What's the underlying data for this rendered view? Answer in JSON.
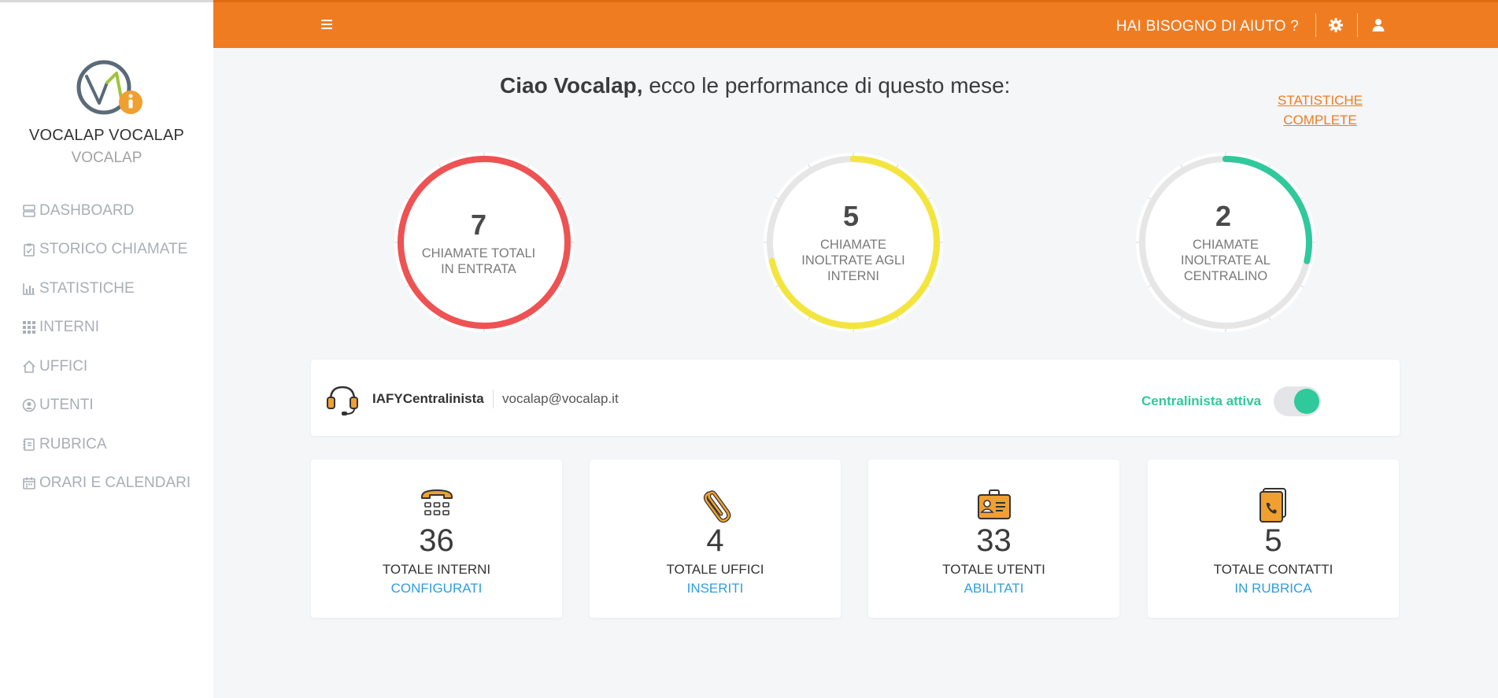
{
  "sidebar": {
    "user_name": "VOCALAP VOCALAP",
    "company": "VOCALAP",
    "items": [
      {
        "label": "DASHBOARD",
        "icon": "dashboard-icon"
      },
      {
        "label": "STORICO CHIAMATE",
        "icon": "clipboard-icon"
      },
      {
        "label": "STATISTICHE",
        "icon": "bar-chart-icon"
      },
      {
        "label": "INTERNI",
        "icon": "grid-icon"
      },
      {
        "label": "UFFICI",
        "icon": "home-icon"
      },
      {
        "label": "UTENTI",
        "icon": "user-circle-icon"
      },
      {
        "label": "RUBRICA",
        "icon": "address-book-icon"
      },
      {
        "label": "ORARI E CALENDARI",
        "icon": "calendar-icon"
      }
    ]
  },
  "topbar": {
    "help_label": "HAI BISOGNO DI AIUTO ?",
    "accent": "#f07c22"
  },
  "greeting": {
    "name": "Ciao Vocalap,",
    "text": " ecco le performance di questo mese:"
  },
  "full_stats": {
    "line1": "STATISTICHE",
    "line2": "COMPLETE"
  },
  "gauges": [
    {
      "value": "7",
      "label": "CHIAMATE TOTALI IN ENTRATA",
      "fraction": 1.0,
      "color": "#ee5253"
    },
    {
      "value": "5",
      "label": "CHIAMATE INOLTRATE AGLI INTERNI",
      "fraction": 0.714,
      "color": "#f3e53d"
    },
    {
      "value": "2",
      "label": "CHIAMATE INOLTRATE AL CENTRALINO",
      "fraction": 0.286,
      "color": "#2fc99b"
    }
  ],
  "operator": {
    "name": "IAFYCentralinista",
    "email": "vocalap@vocalap.it",
    "status_label": "Centralinista attiva",
    "active": true
  },
  "stats": [
    {
      "value": "36",
      "label": "TOTALE INTERNI",
      "sub": "CONFIGURATI",
      "icon": "phone-keypad-icon"
    },
    {
      "value": "4",
      "label": "TOTALE UFFICI",
      "sub": "INSERITI",
      "icon": "paperclip-icon"
    },
    {
      "value": "33",
      "label": "TOTALE UTENTI",
      "sub": "ABILITATI",
      "icon": "id-badge-icon"
    },
    {
      "value": "5",
      "label": "TOTALE CONTATTI",
      "sub": "IN RUBRICA",
      "icon": "contacts-phone-icon"
    }
  ]
}
